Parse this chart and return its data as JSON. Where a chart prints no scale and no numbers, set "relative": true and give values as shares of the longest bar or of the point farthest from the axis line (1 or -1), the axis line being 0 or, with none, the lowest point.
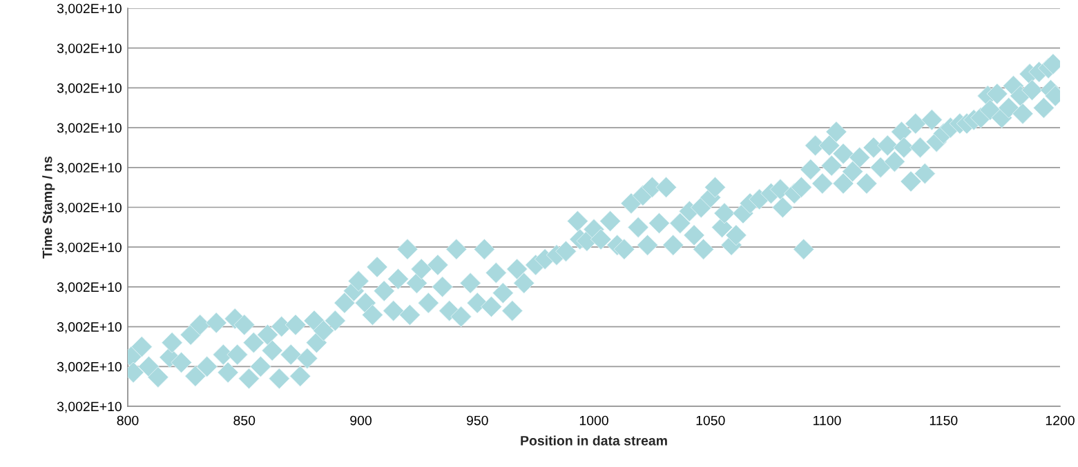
{
  "chart_data": {
    "type": "scatter",
    "xlabel": "Position in data stream",
    "ylabel": "Time Stamp / ns",
    "relative": true,
    "xlim": [
      800,
      1200
    ],
    "xticks": [
      800,
      850,
      900,
      950,
      1000,
      1050,
      1100,
      1150,
      1200
    ],
    "y_categories": [
      "3,002E+10",
      "3,002E+10",
      "3,002E+10",
      "3,002E+10",
      "3,002E+10",
      "3,002E+10",
      "3,002E+10",
      "3,002E+10",
      "3,002E+10",
      "3,002E+10",
      "3,002E+10"
    ],
    "grid": "y",
    "marker": "diamond",
    "series": [
      {
        "color": "#a9d9de",
        "x": [
          801.5,
          802.4,
          806,
          809,
          813,
          818,
          819,
          823,
          827,
          829,
          831,
          834,
          838,
          841,
          843,
          846,
          847,
          850,
          852,
          854,
          857,
          860,
          862,
          865,
          866,
          870,
          872,
          874,
          877,
          880,
          881,
          884,
          889,
          893,
          897,
          899,
          902,
          905,
          907,
          910,
          914,
          916,
          920,
          921,
          924,
          926,
          929,
          933,
          935,
          938,
          941,
          943,
          947,
          950,
          953,
          956,
          958,
          961,
          965,
          967,
          970,
          975,
          979,
          984,
          988,
          993,
          994,
          997,
          1000,
          1003,
          1007,
          1010,
          1013,
          1016,
          1019,
          1021,
          1023,
          1025,
          1028,
          1031,
          1034,
          1037,
          1041,
          1043,
          1046,
          1047,
          1050,
          1052,
          1055,
          1056,
          1059,
          1061,
          1064,
          1067,
          1071,
          1076,
          1080,
          1081,
          1086,
          1089,
          1090,
          1093,
          1095,
          1098,
          1101,
          1102,
          1104,
          1107,
          1107,
          1111,
          1114,
          1117,
          1120,
          1123,
          1126,
          1129,
          1132,
          1133,
          1136,
          1138,
          1140,
          1142,
          1145,
          1147,
          1150,
          1153,
          1157,
          1160,
          1163,
          1166,
          1169,
          1170,
          1173,
          1175,
          1178,
          1180,
          1183,
          1184,
          1187,
          1188,
          1191,
          1193,
          1195,
          1196,
          1197,
          1198
        ],
        "values": [
          0.145,
          0.099,
          0.174,
          0.116,
          0.085,
          0.143,
          0.186,
          0.128,
          0.209,
          0.088,
          0.238,
          0.116,
          0.244,
          0.151,
          0.099,
          0.256,
          0.151,
          0.238,
          0.081,
          0.186,
          0.116,
          0.209,
          0.163,
          0.081,
          0.233,
          0.151,
          0.238,
          0.088,
          0.14,
          0.25,
          0.186,
          0.221,
          0.25,
          0.302,
          0.337,
          0.366,
          0.302,
          0.267,
          0.407,
          0.337,
          0.279,
          0.372,
          0.459,
          0.267,
          0.36,
          0.401,
          0.302,
          0.413,
          0.349,
          0.279,
          0.459,
          0.262,
          0.36,
          0.302,
          0.459,
          0.291,
          0.39,
          0.331,
          0.279,
          0.401,
          0.36,
          0.413,
          0.43,
          0.442,
          0.453,
          0.541,
          0.488,
          0.483,
          0.517,
          0.488,
          0.541,
          0.471,
          0.459,
          0.593,
          0.523,
          0.616,
          0.471,
          0.64,
          0.535,
          0.64,
          0.471,
          0.535,
          0.57,
          0.5,
          0.581,
          0.459,
          0.61,
          0.64,
          0.523,
          0.564,
          0.471,
          0.5,
          0.564,
          0.593,
          0.605,
          0.622,
          0.634,
          0.581,
          0.622,
          0.64,
          0.459,
          0.692,
          0.762,
          0.651,
          0.762,
          0.703,
          0.802,
          0.651,
          0.738,
          0.686,
          0.727,
          0.651,
          0.756,
          0.698,
          0.762,
          0.715,
          0.802,
          0.756,
          0.657,
          0.826,
          0.756,
          0.68,
          0.837,
          0.773,
          0.797,
          0.814,
          0.826,
          0.826,
          0.837,
          0.843,
          0.907,
          0.866,
          0.913,
          0.843,
          0.872,
          0.936,
          0.907,
          0.855,
          0.971,
          0.924,
          0.977,
          0.872,
          0.988,
          0.924,
          1,
          0.907
        ]
      }
    ]
  }
}
